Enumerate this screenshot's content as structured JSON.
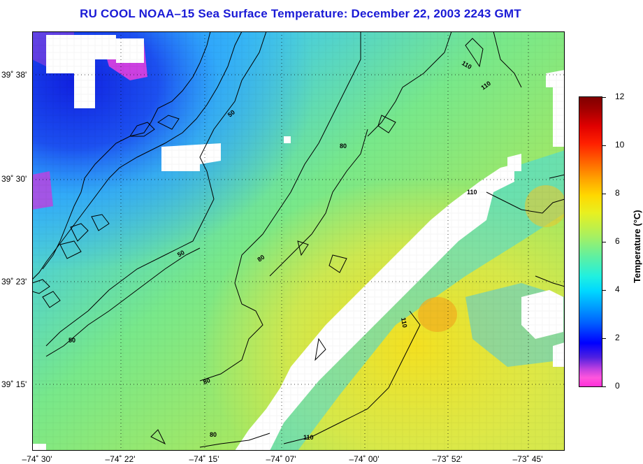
{
  "title": "RU COOL  NOAA–15  Sea Surface Temperature:  December 22, 2003 2243 GMT",
  "lat_labels": [
    {
      "text": "39˚ 38'",
      "lat": 39.633
    },
    {
      "text": "39˚ 30'",
      "lat": 39.5
    },
    {
      "text": "39˚ 23'",
      "lat": 39.383
    },
    {
      "text": "39˚ 15'",
      "lat": 39.25
    }
  ],
  "lon_labels": [
    {
      "text": "–74˚ 30'",
      "lon": -74.5
    },
    {
      "text": "–74˚ 22'",
      "lon": -74.367
    },
    {
      "text": "–74˚ 15'",
      "lon": -74.25
    },
    {
      "text": "–74˚ 07'",
      "lon": -74.117
    },
    {
      "text": "–74˚ 00'",
      "lon": -74.0
    },
    {
      "text": "–73˚ 52'",
      "lon": -73.867
    },
    {
      "text": "–73˚ 45'",
      "lon": -73.75
    }
  ],
  "colorbar": {
    "label": "Temperature (°C)",
    "ticks": [
      "0",
      "2",
      "4",
      "6",
      "8",
      "10",
      "12"
    ],
    "min": 0,
    "max": 12
  },
  "contour_labels": [
    "50",
    "50",
    "50",
    "80",
    "80",
    "80",
    "80",
    "110",
    "110",
    "110",
    "110",
    "110"
  ],
  "colors": {
    "title": "#1a1ad6",
    "land_cloud": "#ffffff",
    "coast": "#000000"
  }
}
